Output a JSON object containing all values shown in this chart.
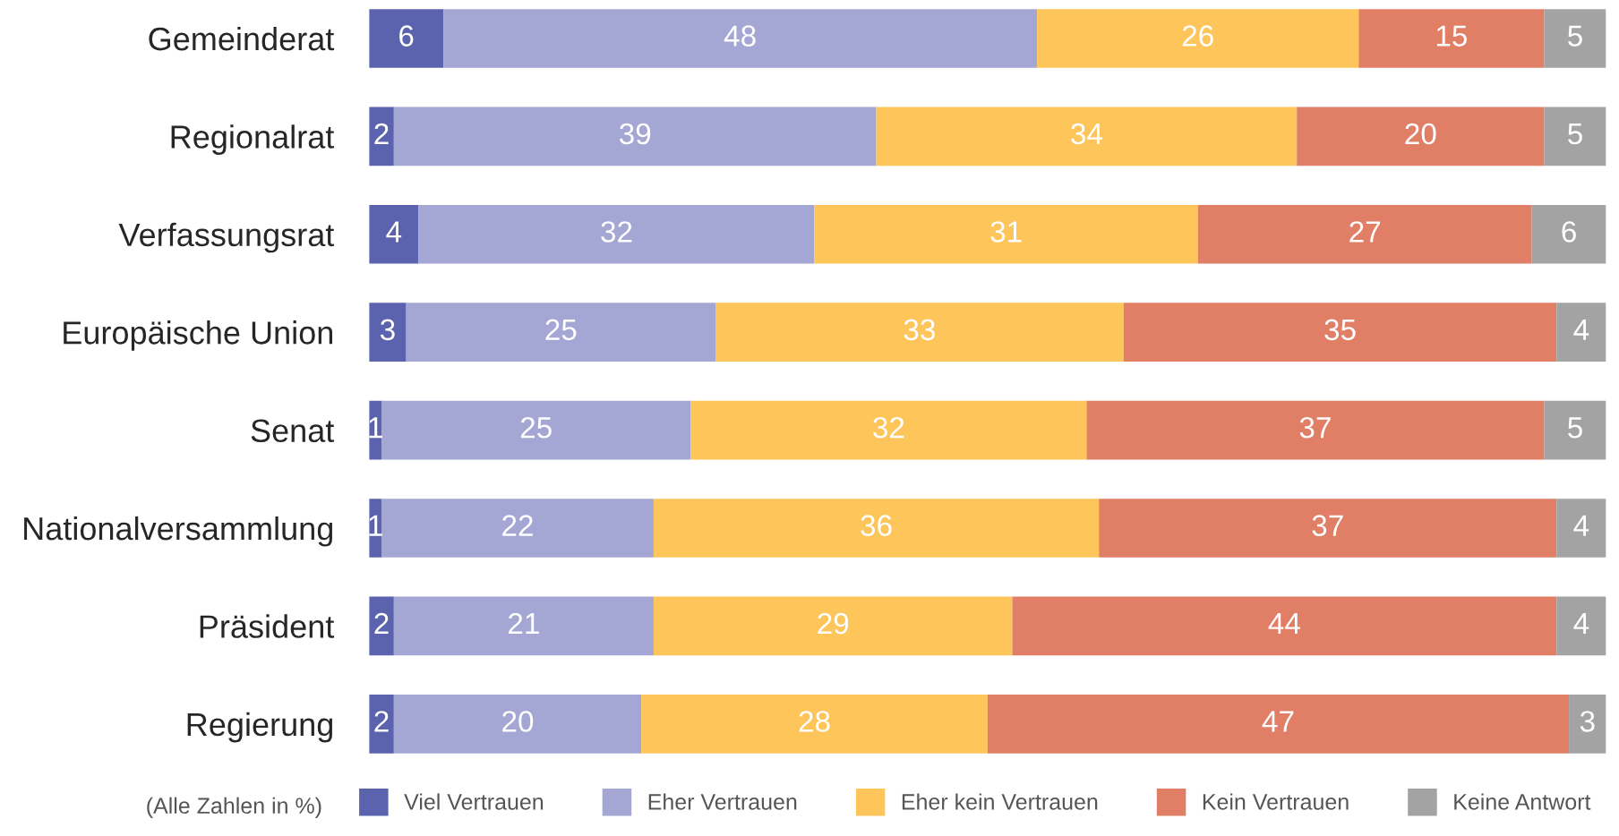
{
  "chart_data": {
    "type": "bar",
    "orientation": "horizontal",
    "stacked": true,
    "data_labels": true,
    "grid": false,
    "legend": "bottom",
    "tick_labels": "y",
    "categories": [
      "Gemeinderat",
      "Regionalrat",
      "Verfassungsrat",
      "Europäische Union",
      "Senat",
      "Nationalversammlung",
      "Präsident",
      "Regierung"
    ],
    "series": [
      {
        "name": "Viel Vertrauen",
        "color": "#5b63ae",
        "values": [
          6,
          2,
          4,
          3,
          1,
          1,
          2,
          2
        ]
      },
      {
        "name": "Eher Vertrauen",
        "color": "#a4a6d4",
        "values": [
          48,
          39,
          32,
          25,
          25,
          22,
          21,
          20
        ]
      },
      {
        "name": "Eher kein Vertrauen",
        "color": "#fec55b",
        "values": [
          26,
          34,
          31,
          33,
          32,
          36,
          29,
          28
        ]
      },
      {
        "name": "Kein Vertrauen",
        "color": "#e07e66",
        "values": [
          15,
          20,
          27,
          35,
          37,
          37,
          44,
          47
        ]
      },
      {
        "name": "Keine Antwort",
        "color": "#a3a3a3",
        "values": [
          5,
          5,
          6,
          4,
          5,
          4,
          4,
          3
        ]
      }
    ],
    "annotations": [
      "(Alle Zahlen in %)"
    ]
  }
}
